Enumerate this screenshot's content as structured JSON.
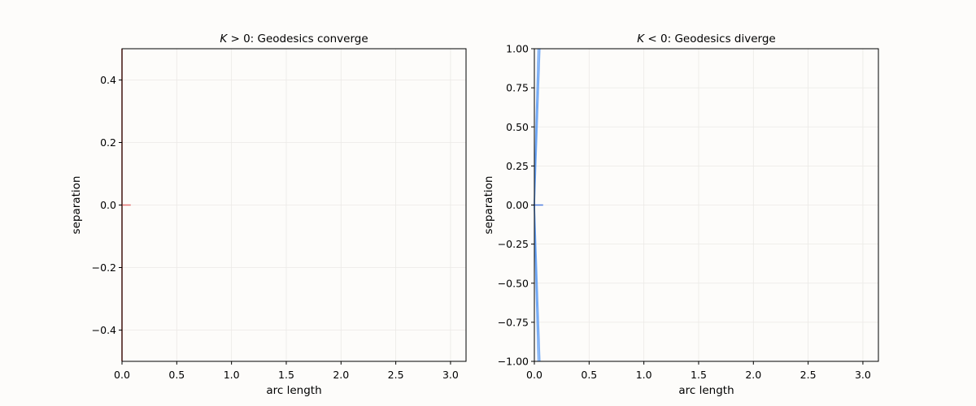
{
  "figure": {
    "background": "#fdfcfa"
  },
  "chart_data": [
    {
      "type": "line",
      "title": {
        "math": "K",
        "relation": " > 0",
        "text": ": Geodesics converge"
      },
      "xlabel": "arc length",
      "ylabel": "separation",
      "xlim": [
        0,
        3.1416
      ],
      "ylim": [
        -0.5,
        0.5
      ],
      "xticks": [
        0.0,
        0.5,
        1.0,
        1.5,
        2.0,
        2.5,
        3.0
      ],
      "xtick_labels": [
        "0.0",
        "0.5",
        "1.0",
        "1.5",
        "2.0",
        "2.5",
        "3.0"
      ],
      "yticks": [
        -0.4,
        -0.2,
        0.0,
        0.2,
        0.4
      ],
      "ytick_labels": [
        "−0.4",
        "−0.2",
        "0.0",
        "0.2",
        "0.4"
      ],
      "grid": true,
      "colors": {
        "curve": "#c0392b",
        "axis_ref": "#e57373",
        "grid": "#ebe9e6",
        "plot_bg": "#fdfcfa"
      },
      "series": [
        {
          "x": [
            0.0,
            0.0
          ],
          "y": [
            0.0,
            0.5
          ]
        },
        {
          "x": [
            0.0,
            0.0
          ],
          "y": [
            0.0,
            -0.5
          ]
        }
      ],
      "reference_line": {
        "x": [
          0.0,
          0.08
        ],
        "y": [
          0.0,
          0.0
        ]
      }
    },
    {
      "type": "line",
      "title": {
        "math": "K",
        "relation": " < 0",
        "text": ": Geodesics diverge"
      },
      "xlabel": "arc length",
      "ylabel": "separation",
      "xlim": [
        0,
        3.1416
      ],
      "ylim": [
        -1.0,
        1.0
      ],
      "xticks": [
        0.0,
        0.5,
        1.0,
        1.5,
        2.0,
        2.5,
        3.0
      ],
      "xtick_labels": [
        "0.0",
        "0.5",
        "1.0",
        "1.5",
        "2.0",
        "2.5",
        "3.0"
      ],
      "yticks": [
        -1.0,
        -0.75,
        -0.5,
        -0.25,
        0.0,
        0.25,
        0.5,
        0.75,
        1.0
      ],
      "ytick_labels": [
        "−1.00",
        "−0.75",
        "−0.50",
        "−0.25",
        "0.00",
        "0.25",
        "0.50",
        "0.75",
        "1.00"
      ],
      "grid": true,
      "colors": {
        "curve": "#5b9bf5",
        "axis_ref": "#4f7fe0",
        "grid": "#ebe9e6",
        "plot_bg": "#fdfcfa"
      },
      "series": [
        {
          "x": [
            0.0,
            0.015,
            0.035
          ],
          "y": [
            0.0,
            0.5,
            1.0
          ]
        },
        {
          "x": [
            0.0,
            0.03,
            0.05
          ],
          "y": [
            0.0,
            0.6,
            1.0
          ]
        },
        {
          "x": [
            0.0,
            0.015,
            0.035
          ],
          "y": [
            0.0,
            -0.5,
            -1.0
          ]
        },
        {
          "x": [
            0.0,
            0.03,
            0.05
          ],
          "y": [
            0.0,
            -0.6,
            -1.0
          ]
        }
      ],
      "reference_line": {
        "x": [
          0.0,
          0.08
        ],
        "y": [
          0.0,
          0.0
        ]
      }
    }
  ]
}
